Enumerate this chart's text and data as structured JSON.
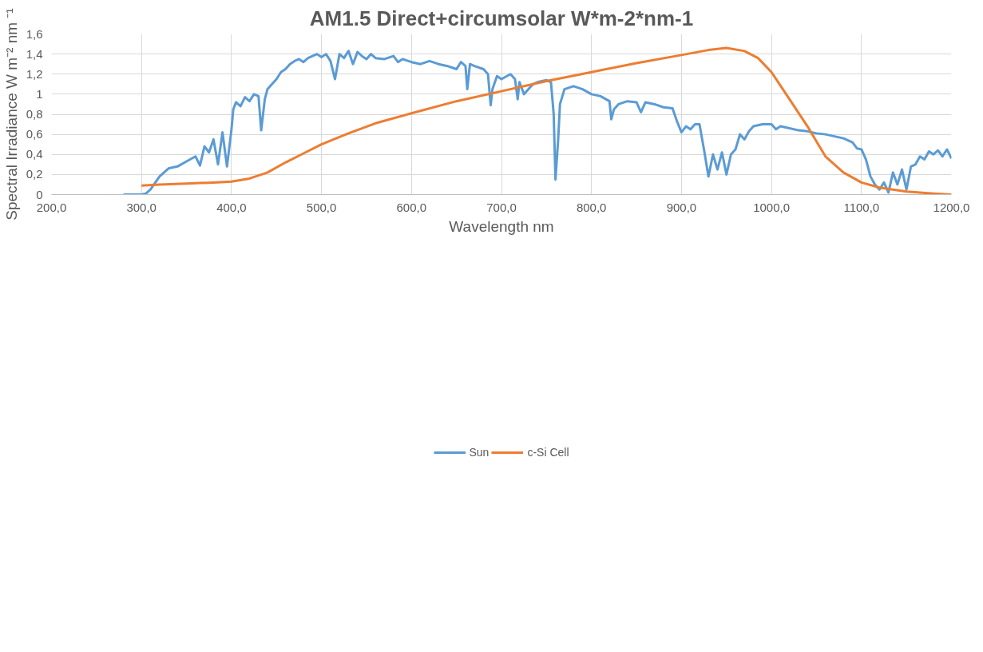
{
  "chart_data": {
    "type": "line",
    "title": "AM1.5 Direct+circumsolar W*m-2*nm-1",
    "xlabel": "Wavelength nm",
    "ylabel": "Spectral Irradiance W m⁻² nm ⁻¹",
    "xlim": [
      200,
      1200
    ],
    "ylim": [
      0,
      1.6
    ],
    "xticks": [
      {
        "value": 200,
        "label": "200,0"
      },
      {
        "value": 300,
        "label": "300,0"
      },
      {
        "value": 400,
        "label": "400,0"
      },
      {
        "value": 500,
        "label": "500,0"
      },
      {
        "value": 600,
        "label": "600,0"
      },
      {
        "value": 700,
        "label": "700,0"
      },
      {
        "value": 800,
        "label": "800,0"
      },
      {
        "value": 900,
        "label": "900,0"
      },
      {
        "value": 1000,
        "label": "1000,0"
      },
      {
        "value": 1100,
        "label": "1100,0"
      },
      {
        "value": 1200,
        "label": "1200,0"
      }
    ],
    "yticks": [
      0,
      {
        "value": 0.2,
        "label": "0,2"
      },
      {
        "value": 0.4,
        "label": "0,4"
      },
      {
        "value": 0.6,
        "label": "0,6"
      },
      {
        "value": 0.8,
        "label": "0,8"
      },
      1,
      {
        "value": 1.2,
        "label": "1,2"
      },
      {
        "value": 1.4,
        "label": "1,4"
      },
      {
        "value": 1.6,
        "label": "1,6"
      }
    ],
    "grid": true,
    "legend": "bottom",
    "line_style": "solid",
    "marker": "none",
    "series": [
      {
        "name": "Sun",
        "color": "#5b9bd5",
        "x": [
          280,
          300,
          305,
          310,
          320,
          330,
          340,
          350,
          360,
          365,
          370,
          375,
          380,
          385,
          390,
          395,
          400,
          402,
          405,
          410,
          415,
          420,
          425,
          430,
          433,
          437,
          440,
          445,
          450,
          455,
          460,
          465,
          470,
          475,
          480,
          485,
          490,
          495,
          500,
          505,
          510,
          515,
          520,
          525,
          530,
          535,
          540,
          545,
          550,
          555,
          560,
          570,
          580,
          585,
          590,
          600,
          610,
          620,
          630,
          640,
          650,
          655,
          660,
          662,
          665,
          670,
          680,
          685,
          688,
          690,
          695,
          700,
          710,
          715,
          718,
          720,
          725,
          730,
          735,
          740,
          750,
          755,
          758,
          760,
          763,
          765,
          770,
          780,
          790,
          800,
          810,
          820,
          822,
          825,
          830,
          840,
          850,
          855,
          860,
          870,
          880,
          890,
          895,
          900,
          905,
          910,
          915,
          920,
          925,
          930,
          935,
          940,
          945,
          950,
          955,
          960,
          965,
          970,
          975,
          980,
          990,
          1000,
          1005,
          1010,
          1020,
          1030,
          1040,
          1050,
          1060,
          1070,
          1080,
          1090,
          1095,
          1100,
          1105,
          1110,
          1115,
          1120,
          1125,
          1130,
          1135,
          1140,
          1145,
          1150,
          1155,
          1160,
          1165,
          1170,
          1175,
          1180,
          1185,
          1190,
          1195,
          1200
        ],
        "values": [
          0,
          0,
          0.01,
          0.05,
          0.18,
          0.26,
          0.28,
          0.33,
          0.38,
          0.29,
          0.48,
          0.42,
          0.55,
          0.3,
          0.62,
          0.28,
          0.65,
          0.85,
          0.92,
          0.88,
          0.97,
          0.93,
          1.0,
          0.98,
          0.64,
          0.95,
          1.05,
          1.1,
          1.15,
          1.22,
          1.25,
          1.3,
          1.33,
          1.35,
          1.32,
          1.36,
          1.38,
          1.4,
          1.37,
          1.4,
          1.33,
          1.15,
          1.4,
          1.36,
          1.43,
          1.3,
          1.42,
          1.38,
          1.35,
          1.4,
          1.36,
          1.35,
          1.38,
          1.32,
          1.35,
          1.32,
          1.3,
          1.33,
          1.3,
          1.28,
          1.25,
          1.32,
          1.28,
          1.05,
          1.3,
          1.28,
          1.25,
          1.2,
          0.89,
          1.05,
          1.18,
          1.15,
          1.2,
          1.15,
          0.95,
          1.12,
          1.0,
          1.05,
          1.1,
          1.12,
          1.14,
          1.12,
          0.8,
          0.15,
          0.55,
          0.9,
          1.05,
          1.08,
          1.05,
          1.0,
          0.98,
          0.93,
          0.75,
          0.85,
          0.9,
          0.93,
          0.92,
          0.82,
          0.92,
          0.9,
          0.87,
          0.86,
          0.73,
          0.62,
          0.68,
          0.65,
          0.7,
          0.7,
          0.45,
          0.18,
          0.4,
          0.25,
          0.42,
          0.2,
          0.4,
          0.45,
          0.6,
          0.55,
          0.63,
          0.68,
          0.7,
          0.7,
          0.65,
          0.68,
          0.66,
          0.64,
          0.63,
          0.61,
          0.6,
          0.58,
          0.56,
          0.52,
          0.46,
          0.45,
          0.35,
          0.18,
          0.1,
          0.05,
          0.12,
          0.02,
          0.22,
          0.1,
          0.25,
          0.05,
          0.28,
          0.3,
          0.38,
          0.35,
          0.43,
          0.4,
          0.44,
          0.38,
          0.45,
          0.36
        ]
      },
      {
        "name": "c-Si Cell",
        "color": "#ed7d31",
        "x": [
          300,
          320,
          350,
          380,
          400,
          420,
          440,
          460,
          480,
          500,
          530,
          560,
          600,
          650,
          700,
          750,
          800,
          850,
          900,
          930,
          950,
          970,
          985,
          1000,
          1020,
          1040,
          1050,
          1060,
          1080,
          1100,
          1120,
          1150,
          1180,
          1200
        ],
        "values": [
          0.09,
          0.1,
          0.11,
          0.12,
          0.13,
          0.16,
          0.22,
          0.32,
          0.41,
          0.5,
          0.61,
          0.71,
          0.81,
          0.93,
          1.03,
          1.13,
          1.22,
          1.31,
          1.39,
          1.44,
          1.46,
          1.43,
          1.36,
          1.22,
          0.95,
          0.68,
          0.53,
          0.38,
          0.22,
          0.12,
          0.07,
          0.03,
          0.01,
          0
        ]
      }
    ]
  }
}
